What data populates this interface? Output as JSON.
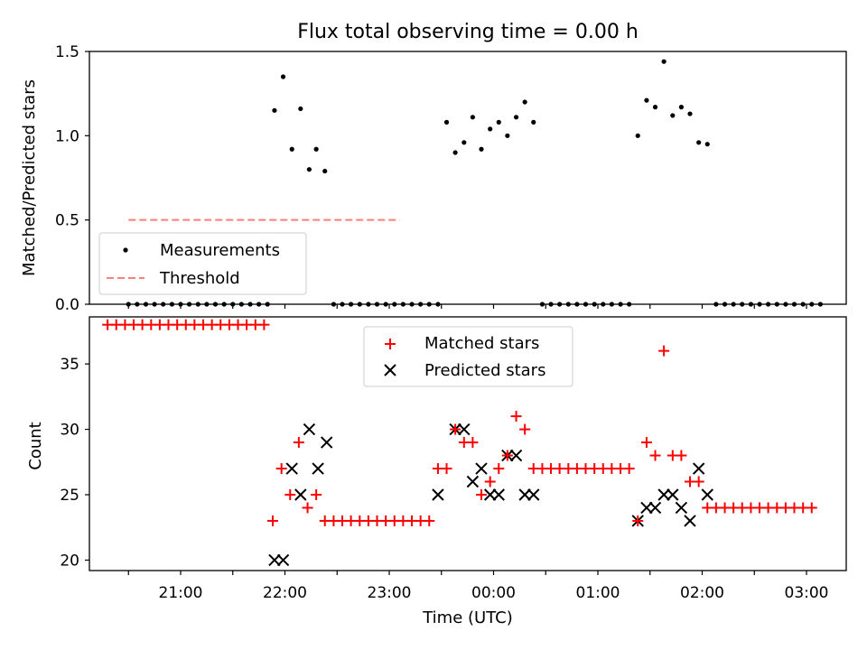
{
  "chart_data": [
    {
      "type": "scatter",
      "title": "Flux total observing time = 0.00 h",
      "xlabel": "",
      "ylabel": "Matched/Predicted stars",
      "ylim": [
        0,
        1.5
      ],
      "yticks": [
        "0.0",
        "0.5",
        "1.0",
        "1.5"
      ],
      "x_hours_ref": "20:00 UTC = 0",
      "legend": {
        "placement": "lower-left",
        "entries": [
          "Measurements",
          "Threshold"
        ]
      },
      "threshold": {
        "name": "Threshold",
        "y": 0.5,
        "x_range": [
          20.5,
          23.1
        ],
        "color": "#ff7f7f",
        "style": "dashed"
      },
      "series": [
        {
          "name": "Measurements",
          "color": "#000000",
          "points": [
            [
              20.5,
              0
            ],
            [
              20.583,
              0
            ],
            [
              20.667,
              0
            ],
            [
              20.75,
              0
            ],
            [
              20.833,
              0
            ],
            [
              20.917,
              0
            ],
            [
              21.0,
              0
            ],
            [
              21.083,
              0
            ],
            [
              21.167,
              0
            ],
            [
              21.25,
              0
            ],
            [
              21.333,
              0
            ],
            [
              21.417,
              0
            ],
            [
              21.5,
              0
            ],
            [
              21.583,
              0
            ],
            [
              21.667,
              0
            ],
            [
              21.75,
              0
            ],
            [
              21.833,
              0
            ],
            [
              21.9,
              1.15
            ],
            [
              21.983,
              1.35
            ],
            [
              22.067,
              0.92
            ],
            [
              22.15,
              1.16
            ],
            [
              22.233,
              0.8
            ],
            [
              22.3,
              0.92
            ],
            [
              22.383,
              0.79
            ],
            [
              22.467,
              0
            ],
            [
              22.55,
              0
            ],
            [
              22.633,
              0
            ],
            [
              22.717,
              0
            ],
            [
              22.8,
              0
            ],
            [
              22.883,
              0
            ],
            [
              22.967,
              0
            ],
            [
              23.05,
              0
            ],
            [
              23.133,
              0
            ],
            [
              23.217,
              0
            ],
            [
              23.3,
              0
            ],
            [
              23.383,
              0
            ],
            [
              23.467,
              0
            ],
            [
              23.55,
              1.08
            ],
            [
              23.633,
              0.9
            ],
            [
              23.717,
              0.96
            ],
            [
              23.8,
              1.11
            ],
            [
              23.883,
              0.92
            ],
            [
              23.967,
              1.04
            ],
            [
              24.05,
              1.08
            ],
            [
              24.133,
              1.0
            ],
            [
              24.217,
              1.11
            ],
            [
              24.3,
              1.2
            ],
            [
              24.383,
              1.08
            ],
            [
              24.467,
              0
            ],
            [
              24.55,
              0
            ],
            [
              24.633,
              0
            ],
            [
              24.717,
              0
            ],
            [
              24.8,
              0
            ],
            [
              24.883,
              0
            ],
            [
              24.967,
              0
            ],
            [
              25.05,
              0
            ],
            [
              25.133,
              0
            ],
            [
              25.217,
              0
            ],
            [
              25.3,
              0
            ],
            [
              25.383,
              1.0
            ],
            [
              25.467,
              1.21
            ],
            [
              25.55,
              1.17
            ],
            [
              25.633,
              1.44
            ],
            [
              25.717,
              1.12
            ],
            [
              25.8,
              1.17
            ],
            [
              25.883,
              1.13
            ],
            [
              25.967,
              0.96
            ],
            [
              26.05,
              0.95
            ],
            [
              26.133,
              0
            ],
            [
              26.217,
              0
            ],
            [
              26.3,
              0
            ],
            [
              26.383,
              0
            ],
            [
              26.467,
              0
            ],
            [
              26.55,
              0
            ],
            [
              26.633,
              0
            ],
            [
              26.717,
              0
            ],
            [
              26.8,
              0
            ],
            [
              26.883,
              0
            ],
            [
              26.967,
              0
            ],
            [
              27.05,
              0
            ],
            [
              27.133,
              0
            ]
          ]
        }
      ]
    },
    {
      "type": "scatter",
      "xlabel": "Time (UTC)",
      "ylabel": "Count",
      "ylim": [
        19.2,
        38.6
      ],
      "yticks": [
        "20",
        "25",
        "30",
        "35"
      ],
      "xticks": [
        "21:00",
        "22:00",
        "23:00",
        "00:00",
        "01:00",
        "02:00",
        "03:00"
      ],
      "x_hours_ref": "20:00 UTC = 0",
      "legend": {
        "placement": "top-center",
        "entries": [
          "Matched stars",
          "Predicted stars"
        ]
      },
      "series": [
        {
          "name": "Matched stars",
          "marker": "+",
          "color": "#ff0000",
          "points": [
            [
              20.3,
              38
            ],
            [
              20.383,
              38
            ],
            [
              20.467,
              38
            ],
            [
              20.55,
              38
            ],
            [
              20.633,
              38
            ],
            [
              20.717,
              38
            ],
            [
              20.8,
              38
            ],
            [
              20.883,
              38
            ],
            [
              20.967,
              38
            ],
            [
              21.05,
              38
            ],
            [
              21.133,
              38
            ],
            [
              21.217,
              38
            ],
            [
              21.3,
              38
            ],
            [
              21.383,
              38
            ],
            [
              21.467,
              38
            ],
            [
              21.55,
              38
            ],
            [
              21.633,
              38
            ],
            [
              21.717,
              38
            ],
            [
              21.8,
              38
            ],
            [
              21.883,
              23
            ],
            [
              21.967,
              27
            ],
            [
              22.05,
              25
            ],
            [
              22.133,
              29
            ],
            [
              22.217,
              24
            ],
            [
              22.3,
              25
            ],
            [
              22.383,
              23
            ],
            [
              22.467,
              23
            ],
            [
              22.55,
              23
            ],
            [
              22.633,
              23
            ],
            [
              22.717,
              23
            ],
            [
              22.8,
              23
            ],
            [
              22.883,
              23
            ],
            [
              22.967,
              23
            ],
            [
              23.05,
              23
            ],
            [
              23.133,
              23
            ],
            [
              23.217,
              23
            ],
            [
              23.3,
              23
            ],
            [
              23.383,
              23
            ],
            [
              23.467,
              27
            ],
            [
              23.55,
              27
            ],
            [
              23.633,
              30
            ],
            [
              23.717,
              29
            ],
            [
              23.8,
              29
            ],
            [
              23.883,
              25
            ],
            [
              23.967,
              26
            ],
            [
              24.05,
              27
            ],
            [
              24.133,
              28
            ],
            [
              24.217,
              31
            ],
            [
              24.3,
              30
            ],
            [
              24.383,
              27
            ],
            [
              24.467,
              27
            ],
            [
              24.55,
              27
            ],
            [
              24.633,
              27
            ],
            [
              24.717,
              27
            ],
            [
              24.8,
              27
            ],
            [
              24.883,
              27
            ],
            [
              24.967,
              27
            ],
            [
              25.05,
              27
            ],
            [
              25.133,
              27
            ],
            [
              25.217,
              27
            ],
            [
              25.3,
              27
            ],
            [
              25.383,
              23
            ],
            [
              25.467,
              29
            ],
            [
              25.55,
              28
            ],
            [
              25.633,
              36
            ],
            [
              25.717,
              28
            ],
            [
              25.8,
              28
            ],
            [
              25.883,
              26
            ],
            [
              25.967,
              26
            ],
            [
              26.05,
              24
            ],
            [
              26.133,
              24
            ],
            [
              26.217,
              24
            ],
            [
              26.3,
              24
            ],
            [
              26.383,
              24
            ],
            [
              26.467,
              24
            ],
            [
              26.55,
              24
            ],
            [
              26.633,
              24
            ],
            [
              26.717,
              24
            ],
            [
              26.8,
              24
            ],
            [
              26.883,
              24
            ],
            [
              26.967,
              24
            ],
            [
              27.05,
              24
            ]
          ]
        },
        {
          "name": "Predicted stars",
          "marker": "x",
          "color": "#000000",
          "points": [
            [
              21.9,
              20
            ],
            [
              21.983,
              20
            ],
            [
              22.067,
              27
            ],
            [
              22.15,
              25
            ],
            [
              22.233,
              30
            ],
            [
              22.317,
              27
            ],
            [
              22.4,
              29
            ],
            [
              23.467,
              25
            ],
            [
              23.633,
              30
            ],
            [
              23.717,
              30
            ],
            [
              23.8,
              26
            ],
            [
              23.883,
              27
            ],
            [
              23.967,
              25
            ],
            [
              24.05,
              25
            ],
            [
              24.133,
              28
            ],
            [
              24.217,
              28
            ],
            [
              24.3,
              25
            ],
            [
              24.383,
              25
            ],
            [
              25.383,
              23
            ],
            [
              25.467,
              24
            ],
            [
              25.55,
              24
            ],
            [
              25.633,
              25
            ],
            [
              25.717,
              25
            ],
            [
              25.8,
              24
            ],
            [
              25.883,
              23
            ],
            [
              25.967,
              27
            ],
            [
              26.05,
              25
            ]
          ]
        }
      ]
    }
  ]
}
